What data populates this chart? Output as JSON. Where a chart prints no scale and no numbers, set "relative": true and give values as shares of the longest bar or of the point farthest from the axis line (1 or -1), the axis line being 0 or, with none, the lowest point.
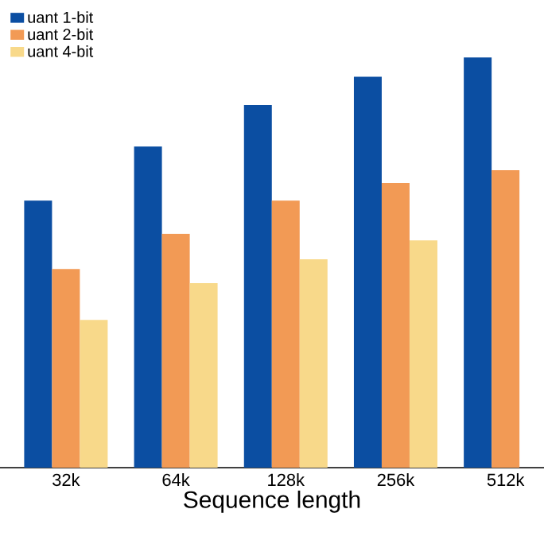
{
  "chart_data": {
    "type": "bar",
    "relative": true,
    "xlabel": "Sequence length",
    "categories": [
      "32k",
      "64k",
      "128k",
      "256k",
      "512k"
    ],
    "series": [
      {
        "name": "uant 1-bit",
        "color": "#0b4ea2",
        "values": [
          0.651,
          0.783,
          0.884,
          0.953,
          1
        ]
      },
      {
        "name": "uant 2-bit",
        "color": "#f29a55",
        "values": [
          0.484,
          0.57,
          0.651,
          0.694,
          0.725
        ]
      },
      {
        "name": "uant 4-bit",
        "color": "#f8d98a",
        "values": [
          0.36,
          0.45,
          0.508,
          0.554,
          null
        ]
      }
    ],
    "legend": "top left",
    "grid": false
  }
}
